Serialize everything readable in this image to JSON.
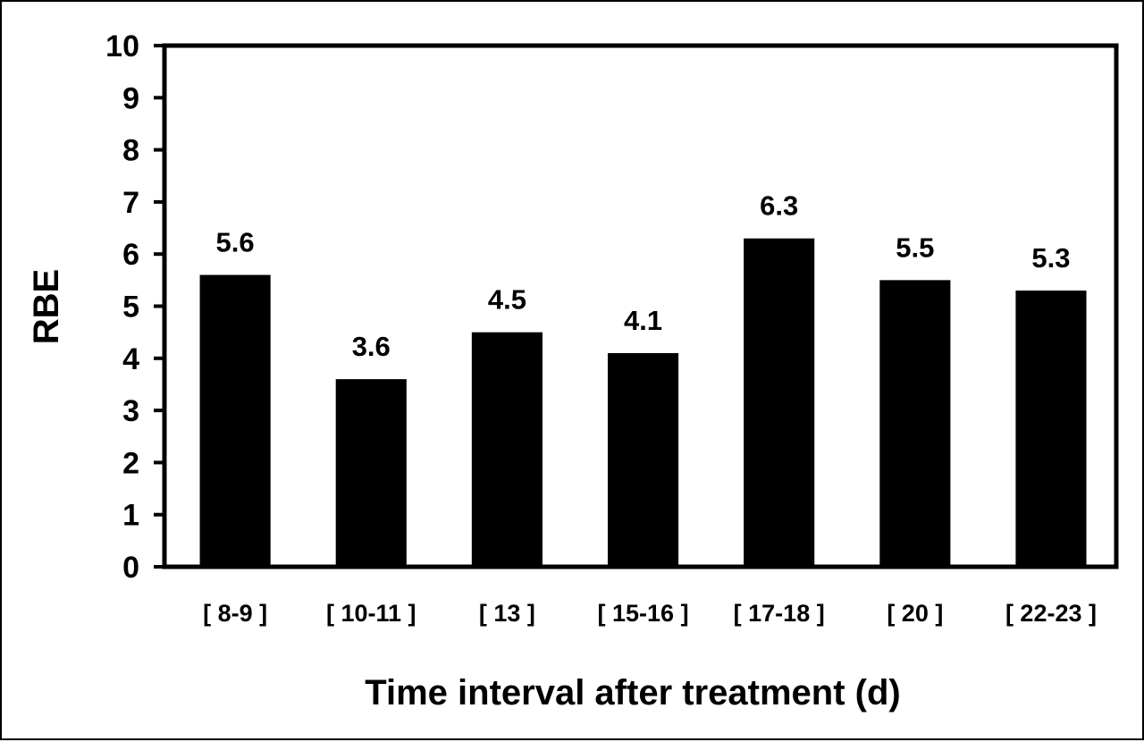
{
  "chart_data": {
    "type": "bar",
    "categories": [
      "[ 8-9 ]",
      "[ 10-11 ]",
      "[ 13 ]",
      "[ 15-16 ]",
      "[ 17-18 ]",
      "[ 20 ]",
      "[ 22-23 ]"
    ],
    "values": [
      5.6,
      3.6,
      4.5,
      4.1,
      6.3,
      5.5,
      5.3
    ],
    "data_labels": [
      "5.6",
      "3.6",
      "4.5",
      "4.1",
      "6.3",
      "5.5",
      "5.3"
    ],
    "title": "",
    "xlabel": "Time interval after treatment (d)",
    "ylabel": "RBE",
    "ylim": [
      0,
      10
    ],
    "yticks": [
      0,
      1,
      2,
      3,
      4,
      5,
      6,
      7,
      8,
      9,
      10
    ],
    "grid": false,
    "legend": "none",
    "bar_color": "#000000"
  }
}
